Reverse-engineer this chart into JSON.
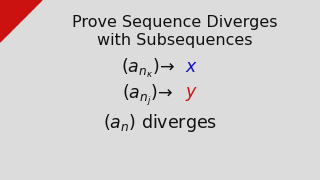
{
  "bg_color": "#dcdcdc",
  "title_line1": "Prove Sequence Diverges",
  "title_line2": "with Subsequences",
  "triangle_color": "#cc1111",
  "text_color": "#111111",
  "blue_color": "#1111cc",
  "red_color": "#cc1111",
  "title_fontsize": 11.5,
  "body_fontsize": 12.5,
  "figsize": [
    3.2,
    1.8
  ],
  "dpi": 100
}
